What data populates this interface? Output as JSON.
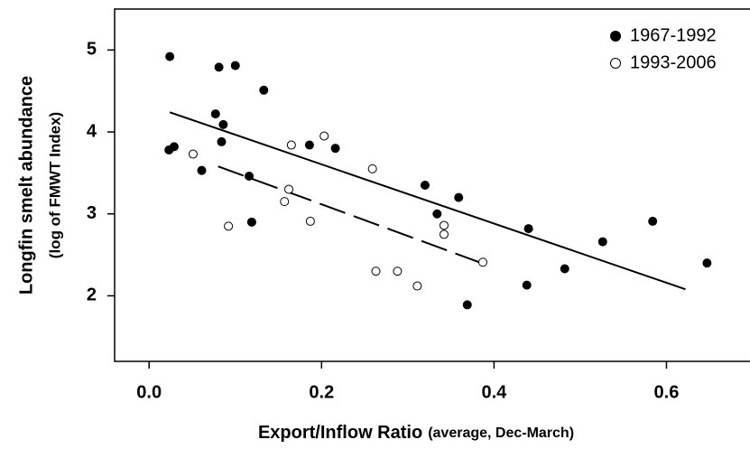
{
  "chart_data": {
    "type": "scatter",
    "xlabel": "Export/Inflow Ratio",
    "xlabel_note": "(average, Dec-March)",
    "ylabel": "Longfin smelt abundance",
    "ylabel_note": "(log of FMWT Index)",
    "xlim": [
      -0.04,
      0.7
    ],
    "ylim": [
      1.2,
      5.5
    ],
    "xticks": [
      {
        "value": 0,
        "label": "0.0"
      },
      0.2,
      0.4,
      0.6
    ],
    "yticks": [
      2,
      3,
      4,
      5
    ],
    "legend": "upper right",
    "series": [
      {
        "name": "1967-1992",
        "color": "#000000",
        "filled": true,
        "x": [
          0.024,
          0.023,
          0.029,
          0.061,
          0.081,
          0.1,
          0.077,
          0.086,
          0.084,
          0.133,
          0.116,
          0.119,
          0.186,
          0.216,
          0.32,
          0.334,
          0.359,
          0.369,
          0.44,
          0.438,
          0.482,
          0.526,
          0.584,
          0.647
        ],
        "values": [
          4.92,
          3.78,
          3.82,
          3.53,
          4.79,
          4.81,
          4.22,
          4.09,
          3.88,
          4.51,
          3.46,
          2.9,
          3.84,
          3.8,
          3.35,
          3.0,
          3.2,
          1.89,
          2.82,
          2.13,
          2.33,
          2.66,
          2.91,
          2.4
        ]
      },
      {
        "name": "1993-2006",
        "color": "#000000",
        "filled": false,
        "x": [
          0.051,
          0.092,
          0.165,
          0.203,
          0.162,
          0.157,
          0.187,
          0.259,
          0.263,
          0.288,
          0.311,
          0.342,
          0.342,
          0.387
        ],
        "values": [
          3.73,
          2.85,
          3.84,
          3.95,
          3.3,
          3.15,
          2.91,
          3.55,
          2.3,
          2.3,
          2.12,
          2.86,
          2.75,
          2.41
        ]
      }
    ],
    "lines": [
      {
        "style": "solid",
        "x": [
          0.024,
          0.622
        ],
        "y": [
          4.24,
          2.08
        ]
      },
      {
        "style": "dashed",
        "x": [
          0.08,
          0.383
        ],
        "y": [
          3.58,
          2.41
        ]
      }
    ]
  }
}
